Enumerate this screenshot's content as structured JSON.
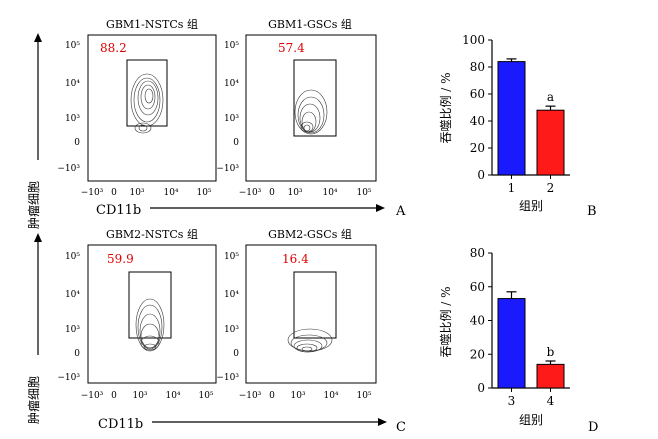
{
  "figure": {
    "colors": {
      "blue": "#1a1aff",
      "red": "#ff1a1a",
      "percent_text": "#e00000"
    },
    "flow_axis_ticks_x": [
      "−10³",
      "0",
      "10³",
      "10⁴",
      "10⁵"
    ],
    "flow_axis_ticks_y": [
      "10⁵",
      "10⁴",
      "10³",
      "0",
      "−10³"
    ],
    "x_axis_label": "CD11b",
    "y_axis_label": "肿瘤细胞"
  },
  "flow_panels": [
    {
      "title": "GBM1-NSTCs 组",
      "percent": "88.2"
    },
    {
      "title": "GBM1-GSCs 组",
      "percent": "57.4"
    },
    {
      "title": "GBM2-NSTCs 组",
      "percent": "59.9"
    },
    {
      "title": "GBM2-GSCs 组",
      "percent": "16.4"
    }
  ],
  "panel_letters": [
    "A",
    "B",
    "C",
    "D"
  ],
  "chart_data": [
    {
      "type": "bar",
      "panel": "B",
      "categories": [
        "1",
        "2"
      ],
      "values": [
        84,
        48
      ],
      "errors": [
        2,
        3
      ],
      "colors": [
        "#1a1aff",
        "#ff1a1a"
      ],
      "annotations": [
        "",
        "a"
      ],
      "xlabel": "组别",
      "ylabel": "吞噬比例 / %",
      "ylim": [
        0,
        100
      ],
      "yticks": [
        0,
        20,
        40,
        60,
        80,
        100
      ]
    },
    {
      "type": "bar",
      "panel": "D",
      "categories": [
        "3",
        "4"
      ],
      "values": [
        53,
        14
      ],
      "errors": [
        4,
        2
      ],
      "colors": [
        "#1a1aff",
        "#ff1a1a"
      ],
      "annotations": [
        "",
        "b"
      ],
      "xlabel": "组别",
      "ylabel": "吞噬比例 / %",
      "ylim": [
        0,
        80
      ],
      "yticks": [
        0,
        20,
        40,
        60,
        80
      ]
    }
  ]
}
